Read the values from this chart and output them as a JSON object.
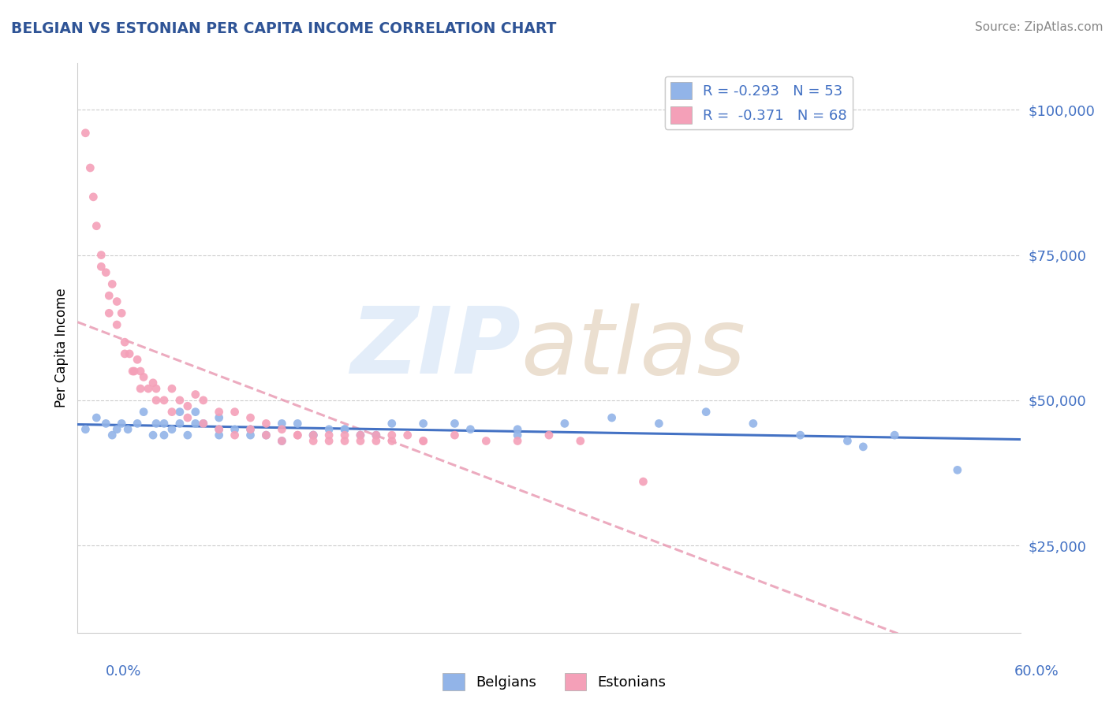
{
  "title": "BELGIAN VS ESTONIAN PER CAPITA INCOME CORRELATION CHART",
  "source_text": "Source: ZipAtlas.com",
  "ylabel": "Per Capita Income",
  "yticks": [
    25000,
    50000,
    75000,
    100000
  ],
  "ytick_labels": [
    "$25,000",
    "$50,000",
    "$75,000",
    "$100,000"
  ],
  "xlim": [
    0.0,
    0.6
  ],
  "ylim": [
    10000,
    108000
  ],
  "belgian_R": -0.293,
  "belgian_N": 53,
  "estonian_R": -0.371,
  "estonian_N": 68,
  "belgian_color": "#92b4e8",
  "estonian_color": "#f4a0b8",
  "belgian_line_color": "#4472c4",
  "estonian_line_color": "#e896b0",
  "title_color": "#2f5496",
  "axis_label_color": "#4472c4",
  "background_color": "#ffffff",
  "belgian_x": [
    0.005,
    0.012,
    0.018,
    0.022,
    0.025,
    0.028,
    0.032,
    0.038,
    0.042,
    0.048,
    0.055,
    0.065,
    0.075,
    0.09,
    0.11,
    0.13,
    0.15,
    0.17,
    0.19,
    0.22,
    0.25,
    0.28,
    0.31,
    0.34,
    0.37,
    0.4,
    0.43,
    0.46,
    0.49,
    0.52,
    0.055,
    0.065,
    0.075,
    0.09,
    0.11,
    0.13,
    0.15,
    0.17,
    0.05,
    0.06,
    0.07,
    0.08,
    0.09,
    0.1,
    0.12,
    0.14,
    0.16,
    0.18,
    0.2,
    0.24,
    0.28,
    0.5,
    0.56
  ],
  "belgian_y": [
    45000,
    47000,
    46000,
    44000,
    45000,
    46000,
    45000,
    46000,
    48000,
    44000,
    46000,
    48000,
    46000,
    47000,
    45000,
    46000,
    44000,
    45000,
    44000,
    46000,
    45000,
    44000,
    46000,
    47000,
    46000,
    48000,
    46000,
    44000,
    43000,
    44000,
    44000,
    46000,
    48000,
    45000,
    44000,
    43000,
    44000,
    45000,
    46000,
    45000,
    44000,
    46000,
    44000,
    45000,
    44000,
    46000,
    45000,
    44000,
    46000,
    46000,
    45000,
    42000,
    38000
  ],
  "estonian_x": [
    0.005,
    0.008,
    0.01,
    0.012,
    0.015,
    0.018,
    0.02,
    0.022,
    0.025,
    0.028,
    0.03,
    0.033,
    0.036,
    0.038,
    0.04,
    0.042,
    0.045,
    0.048,
    0.05,
    0.055,
    0.06,
    0.065,
    0.07,
    0.075,
    0.08,
    0.09,
    0.1,
    0.11,
    0.12,
    0.13,
    0.14,
    0.15,
    0.16,
    0.17,
    0.18,
    0.19,
    0.2,
    0.21,
    0.22,
    0.015,
    0.02,
    0.025,
    0.03,
    0.035,
    0.04,
    0.05,
    0.06,
    0.07,
    0.08,
    0.09,
    0.1,
    0.11,
    0.12,
    0.13,
    0.14,
    0.15,
    0.16,
    0.17,
    0.18,
    0.19,
    0.2,
    0.22,
    0.24,
    0.26,
    0.28,
    0.3,
    0.32,
    0.36
  ],
  "estonian_y": [
    96000,
    90000,
    85000,
    80000,
    75000,
    72000,
    68000,
    70000,
    67000,
    65000,
    60000,
    58000,
    55000,
    57000,
    55000,
    54000,
    52000,
    53000,
    52000,
    50000,
    52000,
    50000,
    49000,
    51000,
    50000,
    48000,
    48000,
    47000,
    46000,
    45000,
    44000,
    44000,
    43000,
    44000,
    43000,
    44000,
    43000,
    44000,
    43000,
    73000,
    65000,
    63000,
    58000,
    55000,
    52000,
    50000,
    48000,
    47000,
    46000,
    45000,
    44000,
    45000,
    44000,
    43000,
    44000,
    43000,
    44000,
    43000,
    44000,
    43000,
    44000,
    43000,
    44000,
    43000,
    43000,
    44000,
    43000,
    36000
  ]
}
